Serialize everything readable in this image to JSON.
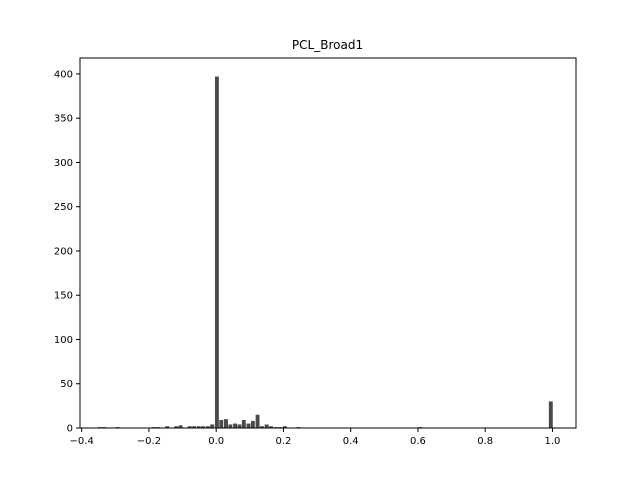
{
  "chart_data": {
    "type": "bar",
    "title": "PCL_Broad1",
    "xlabel": "",
    "ylabel": "",
    "xlim": [
      -0.405,
      1.07
    ],
    "ylim": [
      0,
      418
    ],
    "xticks": [
      -0.4,
      -0.2,
      0.0,
      0.2,
      0.4,
      0.6,
      0.8,
      1.0
    ],
    "xtick_labels": [
      "−0.4",
      "−0.2",
      "0.0",
      "0.2",
      "0.4",
      "0.6",
      "0.8",
      "1.0"
    ],
    "yticks": [
      0,
      50,
      100,
      150,
      200,
      250,
      300,
      350,
      400
    ],
    "ytick_labels": [
      "0",
      "50",
      "100",
      "150",
      "200",
      "250",
      "300",
      "350",
      "400"
    ],
    "bin_width": 0.0134,
    "bar_color": "#4a4a4a",
    "bins": [
      {
        "x": -0.345,
        "count": 1
      },
      {
        "x": -0.332,
        "count": 1
      },
      {
        "x": -0.292,
        "count": 1
      },
      {
        "x": -0.185,
        "count": 1
      },
      {
        "x": -0.172,
        "count": 1
      },
      {
        "x": -0.145,
        "count": 2
      },
      {
        "x": -0.118,
        "count": 2
      },
      {
        "x": -0.105,
        "count": 3
      },
      {
        "x": -0.078,
        "count": 2
      },
      {
        "x": -0.065,
        "count": 2
      },
      {
        "x": -0.051,
        "count": 2
      },
      {
        "x": -0.038,
        "count": 2
      },
      {
        "x": -0.024,
        "count": 2
      },
      {
        "x": -0.011,
        "count": 4
      },
      {
        "x": 0.003,
        "count": 397
      },
      {
        "x": 0.016,
        "count": 9
      },
      {
        "x": 0.03,
        "count": 10
      },
      {
        "x": 0.043,
        "count": 4
      },
      {
        "x": 0.057,
        "count": 5
      },
      {
        "x": 0.07,
        "count": 4
      },
      {
        "x": 0.083,
        "count": 9
      },
      {
        "x": 0.097,
        "count": 5
      },
      {
        "x": 0.11,
        "count": 8
      },
      {
        "x": 0.124,
        "count": 15
      },
      {
        "x": 0.137,
        "count": 2
      },
      {
        "x": 0.151,
        "count": 4
      },
      {
        "x": 0.164,
        "count": 2
      },
      {
        "x": 0.178,
        "count": 1
      },
      {
        "x": 0.191,
        "count": 1
      },
      {
        "x": 0.205,
        "count": 2
      },
      {
        "x": 0.245,
        "count": 1
      },
      {
        "x": 0.607,
        "count": 1
      },
      {
        "x": 0.996,
        "count": 30
      }
    ],
    "grid": false,
    "legend": "none"
  }
}
